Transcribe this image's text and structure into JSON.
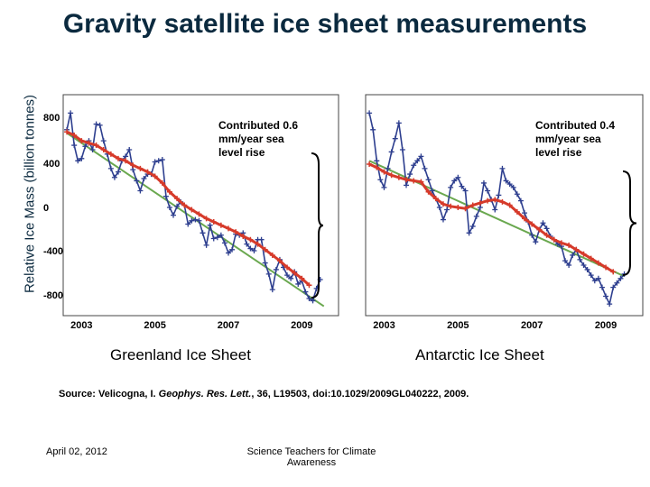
{
  "title": "Gravity satellite ice sheet measurements",
  "y_axis_label": "Relative Ice Mass (billion tonnes)",
  "source": {
    "prefix": "Source: Velicogna, I. ",
    "journal": "Geophys. Res. Lett.",
    "suffix": ", 36, L19503, doi:10.1029/2009GL040222, 2009."
  },
  "footer": {
    "date": "April 02, 2012",
    "org": "Science Teachers for Climate Awareness"
  },
  "colors": {
    "monthly": "#2e3f8f",
    "smoothed": "#d63a2a",
    "trend": "#6aa84f",
    "title": "#0b2a3f"
  },
  "chart_data": [
    {
      "type": "line",
      "caption": "Greenland Ice Sheet",
      "annotation": [
        "Contributed 0.6",
        "mm/year sea",
        "level rise"
      ],
      "y_ticks": [
        800,
        400,
        0,
        -400,
        -800
      ],
      "x_ticks": [
        "2003",
        "2005",
        "2007",
        "2009"
      ],
      "xlim": [
        2002.5,
        2010.0
      ],
      "ylim": [
        -900,
        900
      ],
      "series": [
        {
          "x": [
            2002.6,
            2002.7,
            2002.8,
            2002.9,
            2003.0,
            2003.1,
            2003.2,
            2003.3,
            2003.4,
            2003.5,
            2003.6,
            2003.7,
            2003.8,
            2003.9,
            2004.0,
            2004.1,
            2004.2,
            2004.3,
            2004.4,
            2004.5,
            2004.6,
            2004.7,
            2004.8,
            2004.9,
            2005.0,
            2005.1,
            2005.2,
            2005.3,
            2005.4,
            2005.5,
            2005.6,
            2005.7,
            2005.8,
            2005.9,
            2006.0,
            2006.1,
            2006.2,
            2006.3,
            2006.4,
            2006.5,
            2006.6,
            2006.7,
            2006.8,
            2006.9,
            2007.0,
            2007.1,
            2007.2,
            2007.3,
            2007.4,
            2007.5,
            2007.6,
            2007.7,
            2007.8,
            2007.9,
            2008.0,
            2008.1,
            2008.2,
            2008.3,
            2008.4,
            2008.5,
            2008.6,
            2008.7,
            2008.8,
            2008.9,
            2009.0,
            2009.1,
            2009.2,
            2009.3,
            2009.4,
            2009.5
          ],
          "values": [
            700,
            850,
            560,
            420,
            440,
            550,
            600,
            520,
            750,
            740,
            600,
            480,
            350,
            270,
            320,
            420,
            460,
            520,
            340,
            240,
            150,
            260,
            300,
            300,
            410,
            420,
            430,
            100,
            0,
            -70,
            10,
            50,
            20,
            -150,
            -120,
            -110,
            -120,
            -230,
            -340,
            -160,
            -280,
            -270,
            -250,
            -320,
            -410,
            -380,
            -240,
            -250,
            -230,
            -330,
            -370,
            -390,
            -290,
            -290,
            -500,
            -600,
            -740,
            -560,
            -470,
            -540,
            -610,
            -640,
            -580,
            -690,
            -660,
            -760,
            -820,
            -840,
            -730,
            -650
          ]
        },
        {
          "x": [
            2002.6,
            2002.8,
            2003.0,
            2003.2,
            2003.4,
            2003.6,
            2003.8,
            2004.0,
            2004.2,
            2004.4,
            2004.6,
            2004.8,
            2005.0,
            2005.2,
            2005.4,
            2005.6,
            2005.8,
            2006.0,
            2006.2,
            2006.4,
            2006.6,
            2006.8,
            2007.0,
            2007.2,
            2007.4,
            2007.6,
            2007.8,
            2008.0,
            2008.2,
            2008.4,
            2008.6,
            2008.8,
            2009.0,
            2009.2
          ],
          "values": [
            680,
            650,
            600,
            580,
            560,
            520,
            480,
            440,
            420,
            380,
            350,
            320,
            280,
            220,
            140,
            80,
            20,
            -20,
            -60,
            -100,
            -130,
            -160,
            -190,
            -220,
            -260,
            -290,
            -330,
            -380,
            -430,
            -480,
            -540,
            -590,
            -640,
            -700
          ]
        },
        {
          "x": [
            2002.6,
            2009.6
          ],
          "values": [
            670,
            -890
          ]
        }
      ]
    },
    {
      "type": "line",
      "caption": "Antarctic Ice Sheet",
      "annotation": [
        "Contributed 0.4",
        "mm/year sea",
        "level rise"
      ],
      "x_ticks": [
        "2003",
        "2005",
        "2007",
        "2009"
      ],
      "xlim": [
        2002.5,
        2010.0
      ],
      "ylim": [
        -900,
        900
      ],
      "series": [
        {
          "x": [
            2002.6,
            2002.7,
            2002.8,
            2002.9,
            2003.0,
            2003.1,
            2003.2,
            2003.3,
            2003.4,
            2003.5,
            2003.6,
            2003.7,
            2003.8,
            2003.9,
            2004.0,
            2004.1,
            2004.2,
            2004.3,
            2004.4,
            2004.5,
            2004.6,
            2004.7,
            2004.8,
            2004.9,
            2005.0,
            2005.1,
            2005.2,
            2005.3,
            2005.4,
            2005.5,
            2005.6,
            2005.7,
            2005.8,
            2005.9,
            2006.0,
            2006.1,
            2006.2,
            2006.3,
            2006.4,
            2006.5,
            2006.6,
            2006.7,
            2006.8,
            2006.9,
            2007.0,
            2007.1,
            2007.2,
            2007.3,
            2007.4,
            2007.5,
            2007.6,
            2007.7,
            2007.8,
            2007.9,
            2008.0,
            2008.1,
            2008.2,
            2008.3,
            2008.4,
            2008.5,
            2008.6,
            2008.7,
            2008.8,
            2008.9,
            2009.0,
            2009.1,
            2009.2,
            2009.3,
            2009.4,
            2009.5
          ],
          "values": [
            850,
            700,
            420,
            250,
            180,
            350,
            500,
            620,
            760,
            520,
            200,
            300,
            380,
            420,
            460,
            350,
            250,
            150,
            80,
            0,
            -110,
            -20,
            180,
            240,
            270,
            190,
            150,
            -230,
            -170,
            -80,
            0,
            220,
            150,
            70,
            -20,
            110,
            350,
            240,
            210,
            180,
            120,
            60,
            -50,
            -130,
            -250,
            -310,
            -200,
            -140,
            -190,
            -260,
            -290,
            -330,
            -350,
            -480,
            -520,
            -430,
            -380,
            -470,
            -520,
            -560,
            -610,
            -660,
            -640,
            -720,
            -800,
            -870,
            -720,
            -680,
            -640,
            -600
          ]
        },
        {
          "x": [
            2002.6,
            2002.8,
            2003.0,
            2003.2,
            2003.4,
            2003.6,
            2003.8,
            2004.0,
            2004.2,
            2004.4,
            2004.6,
            2004.8,
            2005.0,
            2005.2,
            2005.4,
            2005.6,
            2005.8,
            2006.0,
            2006.2,
            2006.4,
            2006.6,
            2006.8,
            2007.0,
            2007.2,
            2007.4,
            2007.6,
            2007.8,
            2008.0,
            2008.2,
            2008.4,
            2008.6,
            2008.8,
            2009.0,
            2009.2
          ],
          "values": [
            390,
            360,
            320,
            290,
            270,
            250,
            240,
            230,
            140,
            80,
            30,
            10,
            0,
            -10,
            20,
            40,
            60,
            70,
            50,
            20,
            -40,
            -100,
            -150,
            -200,
            -250,
            -290,
            -320,
            -340,
            -380,
            -420,
            -460,
            -500,
            -540,
            -580
          ]
        },
        {
          "x": [
            2002.6,
            2009.5
          ],
          "values": [
            420,
            -620
          ]
        }
      ]
    }
  ]
}
